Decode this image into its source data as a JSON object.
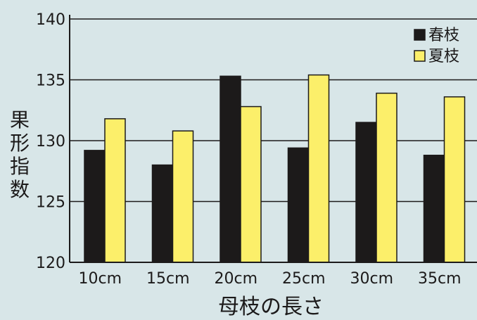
{
  "chart_data": {
    "type": "bar",
    "ylabel": "果形指数",
    "xlabel": "母枝の長さ",
    "categories": [
      "10cm",
      "15cm",
      "20cm",
      "25cm",
      "30cm",
      "35cm"
    ],
    "series": [
      {
        "name": "春枝",
        "color": "#1c1a1a",
        "values": [
          129.2,
          128.0,
          135.3,
          129.4,
          131.5,
          128.8
        ]
      },
      {
        "name": "夏枝",
        "color": "#fcef6a",
        "values": [
          131.8,
          130.8,
          132.8,
          135.4,
          133.9,
          133.6
        ]
      }
    ],
    "ylim": [
      120,
      140
    ],
    "yticks": [
      "120",
      "125",
      "130",
      "135",
      "140"
    ],
    "grid": true,
    "legend_position": "top-right",
    "colors": {
      "background": "#d8e6e8",
      "axis": "#1c1a1a",
      "gridline": "#1c1a1a",
      "bar_outline": "#1c1a1a"
    }
  }
}
